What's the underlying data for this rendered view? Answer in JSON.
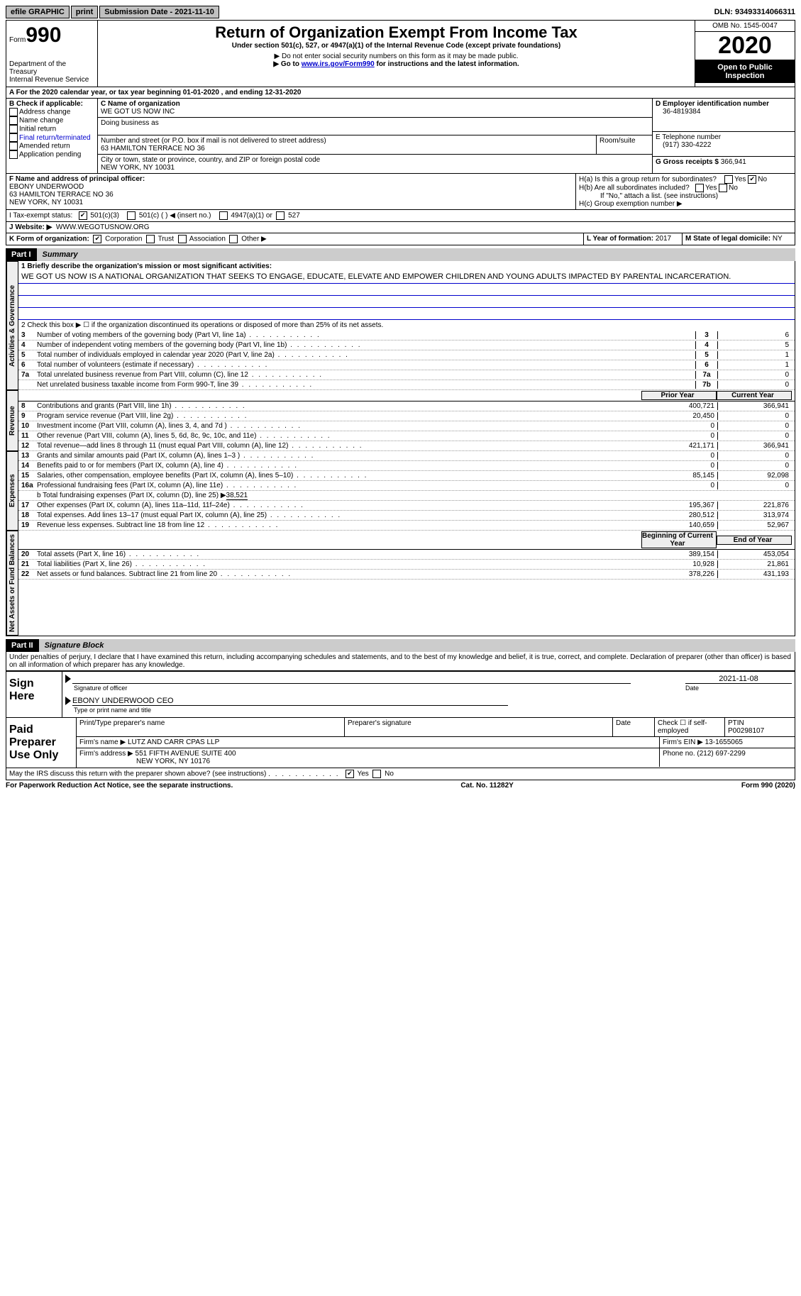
{
  "topbar": {
    "efile": "efile GRAPHIC",
    "print": "print",
    "submission_label": "Submission Date - 2021-11-10",
    "dln": "DLN: 93493314066311"
  },
  "header": {
    "form_prefix": "Form",
    "form_number": "990",
    "dept": "Department of the Treasury\nInternal Revenue Service",
    "title": "Return of Organization Exempt From Income Tax",
    "subtitle": "Under section 501(c), 527, or 4947(a)(1) of the Internal Revenue Code (except private foundations)",
    "note1": "▶ Do not enter social security numbers on this form as it may be made public.",
    "note2_pre": "▶ Go to ",
    "note2_link": "www.irs.gov/Form990",
    "note2_post": " for instructions and the latest information.",
    "omb": "OMB No. 1545-0047",
    "year": "2020",
    "inspect": "Open to Public Inspection"
  },
  "lineA": "A For the 2020 calendar year, or tax year beginning 01-01-2020    , and ending 12-31-2020",
  "boxB": {
    "label": "B Check if applicable:",
    "items": [
      "Address change",
      "Name change",
      "Initial return",
      "Final return/terminated",
      "Amended return",
      "Application pending"
    ]
  },
  "boxC": {
    "label_name": "C Name of organization",
    "org_name": "WE GOT US NOW INC",
    "dba_label": "Doing business as",
    "street_label": "Number and street (or P.O. box if mail is not delivered to street address)",
    "room_label": "Room/suite",
    "street": "63 HAMILTON TERRACE NO 36",
    "city_label": "City or town, state or province, country, and ZIP or foreign postal code",
    "city": "NEW YORK, NY  10031"
  },
  "boxD": {
    "label": "D Employer identification number",
    "value": "36-4819384"
  },
  "boxE": {
    "label": "E Telephone number",
    "value": "(917) 330-4222"
  },
  "boxG": {
    "label": "G Gross receipts $",
    "value": "366,941"
  },
  "boxF": {
    "label": "F Name and address of principal officer:",
    "name": "EBONY UNDERWOOD",
    "addr1": "63 HAMILTON TERRACE NO 36",
    "addr2": "NEW YORK, NY  10031"
  },
  "boxH": {
    "a_label": "H(a)  Is this a group return for subordinates?",
    "b_label": "H(b)  Are all subordinates included?",
    "note": "If \"No,\" attach a list. (see instructions)",
    "c_label": "H(c)  Group exemption number ▶",
    "yes": "Yes",
    "no": "No"
  },
  "boxI": {
    "label": "I    Tax-exempt status:",
    "opt1": "501(c)(3)",
    "opt2": "501(c) (  ) ◀ (insert no.)",
    "opt3": "4947(a)(1) or",
    "opt4": "527"
  },
  "boxJ": {
    "label": "J   Website: ▶",
    "value": "WWW.WEGOTUSNOW.ORG"
  },
  "boxK": {
    "label": "K Form of organization:",
    "corp": "Corporation",
    "trust": "Trust",
    "assoc": "Association",
    "other": "Other ▶"
  },
  "boxL": {
    "label": "L Year of formation:",
    "value": "2017"
  },
  "boxM": {
    "label": "M State of legal domicile:",
    "value": "NY"
  },
  "part1": {
    "header": "Part I",
    "title": "Summary"
  },
  "tabs": {
    "gov": "Activities & Governance",
    "rev": "Revenue",
    "exp": "Expenses",
    "net": "Net Assets or Fund Balances"
  },
  "mission_label": "1  Briefly describe the organization's mission or most significant activities:",
  "mission": "WE GOT US NOW IS A NATIONAL ORGANIZATION THAT SEEKS TO ENGAGE, EDUCATE, ELEVATE AND EMPOWER CHILDREN AND YOUNG ADULTS IMPACTED BY PARENTAL INCARCERATION.",
  "line2": "2   Check this box ▶ ☐  if the organization discontinued its operations or disposed of more than 25% of its net assets.",
  "gov_lines": [
    {
      "n": "3",
      "t": "Number of voting members of the governing body (Part VI, line 1a)",
      "box": "3",
      "v": "6"
    },
    {
      "n": "4",
      "t": "Number of independent voting members of the governing body (Part VI, line 1b)",
      "box": "4",
      "v": "5"
    },
    {
      "n": "5",
      "t": "Total number of individuals employed in calendar year 2020 (Part V, line 2a)",
      "box": "5",
      "v": "1"
    },
    {
      "n": "6",
      "t": "Total number of volunteers (estimate if necessary)",
      "box": "6",
      "v": "1"
    },
    {
      "n": "7a",
      "t": "Total unrelated business revenue from Part VIII, column (C), line 12",
      "box": "7a",
      "v": "0"
    },
    {
      "n": "",
      "t": "Net unrelated business taxable income from Form 990-T, line 39",
      "box": "7b",
      "v": "0"
    }
  ],
  "col_headers": {
    "prior": "Prior Year",
    "current": "Current Year",
    "begin": "Beginning of Current Year",
    "end": "End of Year"
  },
  "rev_lines": [
    {
      "n": "8",
      "t": "Contributions and grants (Part VIII, line 1h)",
      "p": "400,721",
      "c": "366,941"
    },
    {
      "n": "9",
      "t": "Program service revenue (Part VIII, line 2g)",
      "p": "20,450",
      "c": "0"
    },
    {
      "n": "10",
      "t": "Investment income (Part VIII, column (A), lines 3, 4, and 7d )",
      "p": "0",
      "c": "0"
    },
    {
      "n": "11",
      "t": "Other revenue (Part VIII, column (A), lines 5, 6d, 8c, 9c, 10c, and 11e)",
      "p": "0",
      "c": "0"
    },
    {
      "n": "12",
      "t": "Total revenue—add lines 8 through 11 (must equal Part VIII, column (A), line 12)",
      "p": "421,171",
      "c": "366,941"
    }
  ],
  "exp_lines": [
    {
      "n": "13",
      "t": "Grants and similar amounts paid (Part IX, column (A), lines 1–3 )",
      "p": "0",
      "c": "0"
    },
    {
      "n": "14",
      "t": "Benefits paid to or for members (Part IX, column (A), line 4)",
      "p": "0",
      "c": "0"
    },
    {
      "n": "15",
      "t": "Salaries, other compensation, employee benefits (Part IX, column (A), lines 5–10)",
      "p": "85,145",
      "c": "92,098"
    },
    {
      "n": "16a",
      "t": "Professional fundraising fees (Part IX, column (A), line 11e)",
      "p": "0",
      "c": "0"
    }
  ],
  "line16b_pre": "b   Total fundraising expenses (Part IX, column (D), line 25) ▶",
  "line16b_val": "38,521",
  "exp_lines2": [
    {
      "n": "17",
      "t": "Other expenses (Part IX, column (A), lines 11a–11d, 11f–24e)",
      "p": "195,367",
      "c": "221,876"
    },
    {
      "n": "18",
      "t": "Total expenses. Add lines 13–17 (must equal Part IX, column (A), line 25)",
      "p": "280,512",
      "c": "313,974"
    },
    {
      "n": "19",
      "t": "Revenue less expenses. Subtract line 18 from line 12",
      "p": "140,659",
      "c": "52,967"
    }
  ],
  "net_lines": [
    {
      "n": "20",
      "t": "Total assets (Part X, line 16)",
      "p": "389,154",
      "c": "453,054"
    },
    {
      "n": "21",
      "t": "Total liabilities (Part X, line 26)",
      "p": "10,928",
      "c": "21,861"
    },
    {
      "n": "22",
      "t": "Net assets or fund balances. Subtract line 21 from line 20",
      "p": "378,226",
      "c": "431,193"
    }
  ],
  "part2": {
    "header": "Part II",
    "title": "Signature Block"
  },
  "penalty": "Under penalties of perjury, I declare that I have examined this return, including accompanying schedules and statements, and to the best of my knowledge and belief, it is true, correct, and complete. Declaration of preparer (other than officer) is based on all information of which preparer has any knowledge.",
  "sign": {
    "here": "Sign Here",
    "sig_officer": "Signature of officer",
    "date_label": "Date",
    "date": "2021-11-08",
    "name_title": "EBONY UNDERWOOD  CEO",
    "type_label": "Type or print name and title"
  },
  "paid": {
    "label": "Paid Preparer Use Only",
    "col1": "Print/Type preparer's name",
    "col2": "Preparer's signature",
    "col3": "Date",
    "check_label": "Check ☐ if self-employed",
    "ptin_label": "PTIN",
    "ptin": "P00298107",
    "firm_name_label": "Firm's name    ▶",
    "firm_name": "LUTZ AND CARR CPAS LLP",
    "firm_ein_label": "Firm's EIN ▶",
    "firm_ein": "13-1655065",
    "firm_addr_label": "Firm's address ▶",
    "firm_addr1": "551 FIFTH AVENUE SUITE 400",
    "firm_addr2": "NEW YORK, NY  10176",
    "phone_label": "Phone no.",
    "phone": "(212) 697-2299"
  },
  "discuss": "May the IRS discuss this return with the preparer shown above? (see instructions)",
  "footer": {
    "left": "For Paperwork Reduction Act Notice, see the separate instructions.",
    "mid": "Cat. No. 11282Y",
    "right": "Form 990 (2020)"
  }
}
